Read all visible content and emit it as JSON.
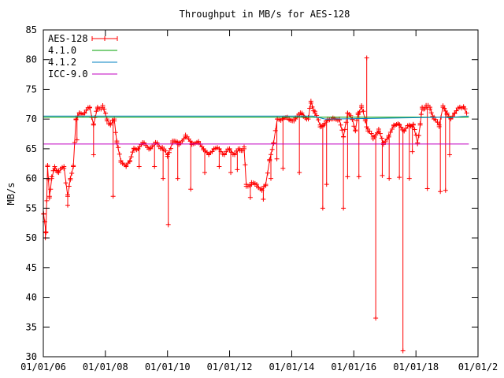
{
  "chart_data": {
    "type": "line",
    "title": "Throughput in MB/s for AES-128",
    "xlabel": "",
    "ylabel": "MB/s",
    "xlim": [
      "2006-01-01",
      "2020-01-01"
    ],
    "ylim": [
      30,
      85
    ],
    "x_ticks": [
      "01/01/06",
      "01/01/08",
      "01/01/10",
      "01/01/12",
      "01/01/14",
      "01/01/16",
      "01/01/18",
      "01/01/2"
    ],
    "y_ticks": [
      30,
      35,
      40,
      45,
      50,
      55,
      60,
      65,
      70,
      75,
      80,
      85
    ],
    "grid": false,
    "legend_position": "top-left",
    "series": [
      {
        "name": "AES-128",
        "color": "#ff0000",
        "marker": "plus",
        "points": [
          [
            "2006-01-05",
            54
          ],
          [
            "2006-02-01",
            51
          ],
          [
            "2006-02-20",
            62
          ],
          [
            "2006-03-15",
            57
          ],
          [
            "2006-04-10",
            60
          ],
          [
            "2006-05-15",
            62
          ],
          [
            "2006-07-01",
            61
          ],
          [
            "2006-09-01",
            62
          ],
          [
            "2006-10-15",
            57
          ],
          [
            "2006-11-15",
            60
          ],
          [
            "2006-12-20",
            62
          ],
          [
            "2007-01-20",
            70
          ],
          [
            "2007-03-01",
            71
          ],
          [
            "2007-05-01",
            71
          ],
          [
            "2007-07-01",
            72
          ],
          [
            "2007-08-15",
            69
          ],
          [
            "2007-10-01",
            72
          ],
          [
            "2007-12-01",
            72
          ],
          [
            "2008-01-20",
            70
          ],
          [
            "2008-03-01",
            69
          ],
          [
            "2008-04-15",
            70
          ],
          [
            "2008-05-15",
            66
          ],
          [
            "2008-07-01",
            63
          ],
          [
            "2008-09-01",
            62
          ],
          [
            "2008-10-15",
            63
          ],
          [
            "2008-12-01",
            65
          ],
          [
            "2009-01-20",
            65
          ],
          [
            "2009-04-01",
            66
          ],
          [
            "2009-06-15",
            65
          ],
          [
            "2009-09-01",
            66
          ],
          [
            "2009-11-01",
            65
          ],
          [
            "2010-01-01",
            64
          ],
          [
            "2010-03-01",
            66
          ],
          [
            "2010-05-15",
            66
          ],
          [
            "2010-08-01",
            67
          ],
          [
            "2010-10-15",
            66
          ],
          [
            "2011-01-01",
            66
          ],
          [
            "2011-03-01",
            65
          ],
          [
            "2011-05-01",
            64
          ],
          [
            "2011-07-01",
            65
          ],
          [
            "2011-09-01",
            65
          ],
          [
            "2011-11-01",
            64
          ],
          [
            "2012-01-01",
            65
          ],
          [
            "2012-03-01",
            64
          ],
          [
            "2012-05-01",
            65
          ],
          [
            "2012-06-20",
            65
          ],
          [
            "2012-07-15",
            59
          ],
          [
            "2012-09-15",
            59
          ],
          [
            "2012-11-15",
            59
          ],
          [
            "2013-01-15",
            58
          ],
          [
            "2013-03-01",
            59
          ],
          [
            "2013-04-15",
            63
          ],
          [
            "2013-06-01",
            66
          ],
          [
            "2013-07-15",
            70
          ],
          [
            "2013-09-15",
            70
          ],
          [
            "2013-12-01",
            70
          ],
          [
            "2014-02-15",
            70
          ],
          [
            "2014-05-01",
            71
          ],
          [
            "2014-07-15",
            70
          ],
          [
            "2014-08-15",
            73
          ],
          [
            "2014-10-01",
            71
          ],
          [
            "2014-12-01",
            69
          ],
          [
            "2015-01-20",
            69
          ],
          [
            "2015-03-01",
            70
          ],
          [
            "2015-05-01",
            70
          ],
          [
            "2015-07-15",
            70
          ],
          [
            "2015-09-01",
            67
          ],
          [
            "2015-10-20",
            71
          ],
          [
            "2015-12-15",
            70
          ],
          [
            "2016-01-20",
            68
          ],
          [
            "2016-02-20",
            71
          ],
          [
            "2016-04-01",
            72
          ],
          [
            "2016-05-15",
            70
          ],
          [
            "2016-06-15",
            68
          ],
          [
            "2016-08-15",
            67
          ],
          [
            "2016-10-20",
            68
          ],
          [
            "2016-12-15",
            66
          ],
          [
            "2017-02-15",
            67
          ],
          [
            "2017-04-15",
            69
          ],
          [
            "2017-06-20",
            69
          ],
          [
            "2017-08-15",
            68
          ],
          [
            "2017-10-15",
            69
          ],
          [
            "2017-12-01",
            69
          ],
          [
            "2018-01-20",
            66
          ],
          [
            "2018-02-20",
            69
          ],
          [
            "2018-03-15",
            72
          ],
          [
            "2018-05-01",
            72
          ],
          [
            "2018-06-15",
            72
          ],
          [
            "2018-08-01",
            70
          ],
          [
            "2018-10-01",
            69
          ],
          [
            "2018-11-15",
            72
          ],
          [
            "2019-01-01",
            71
          ],
          [
            "2019-02-15",
            70
          ],
          [
            "2019-04-01",
            71
          ],
          [
            "2019-06-01",
            72
          ],
          [
            "2019-07-15",
            72
          ],
          [
            "2019-08-20",
            71
          ]
        ],
        "spikes": [
          [
            "2006-01-25",
            50
          ],
          [
            "2006-10-15",
            55.5
          ],
          [
            "2007-02-01",
            66.5
          ],
          [
            "2007-08-15",
            64
          ],
          [
            "2008-04-01",
            57
          ],
          [
            "2009-02-01",
            62
          ],
          [
            "2009-08-01",
            62
          ],
          [
            "2009-11-10",
            60
          ],
          [
            "2010-01-10",
            52.2
          ],
          [
            "2010-05-01",
            60
          ],
          [
            "2010-10-01",
            58.2
          ],
          [
            "2011-03-15",
            61
          ],
          [
            "2011-09-01",
            62
          ],
          [
            "2012-01-15",
            61
          ],
          [
            "2012-04-01",
            61.5
          ],
          [
            "2012-09-01",
            56.8
          ],
          [
            "2013-02-01",
            56.5
          ],
          [
            "2013-05-01",
            60
          ],
          [
            "2013-07-10",
            63.3
          ],
          [
            "2013-09-20",
            61.7
          ],
          [
            "2014-04-01",
            61
          ],
          [
            "2015-01-01",
            55
          ],
          [
            "2015-02-15",
            59
          ],
          [
            "2015-09-01",
            55
          ],
          [
            "2015-10-20",
            60.3
          ],
          [
            "2016-03-01",
            60.3
          ],
          [
            "2016-06-01",
            80.3
          ],
          [
            "2016-09-15",
            36.5
          ],
          [
            "2016-12-01",
            60.5
          ],
          [
            "2017-02-20",
            60
          ],
          [
            "2017-06-20",
            60.2
          ],
          [
            "2017-08-01",
            31
          ],
          [
            "2017-10-15",
            60
          ],
          [
            "2017-11-20",
            64.5
          ],
          [
            "2018-05-15",
            58.3
          ],
          [
            "2018-10-15",
            57.8
          ],
          [
            "2018-12-15",
            58
          ],
          [
            "2019-02-01",
            64
          ]
        ]
      },
      {
        "name": "4.1.0",
        "color": "#00a000",
        "points": [
          [
            "2006-01-01",
            70.3
          ],
          [
            "2019-09-15",
            70.3
          ]
        ]
      },
      {
        "name": "4.1.2",
        "color": "#0080c0",
        "points": [
          [
            "2006-01-01",
            70.5
          ],
          [
            "2014-09-01",
            70.5
          ],
          [
            "2015-02-01",
            70.0
          ],
          [
            "2018-12-01",
            70.3
          ],
          [
            "2019-02-15",
            70.2
          ],
          [
            "2019-03-15",
            70.3
          ],
          [
            "2019-09-15",
            70.5
          ]
        ]
      },
      {
        "name": "ICC-9.0",
        "color": "#c000c0",
        "points": [
          [
            "2006-01-01",
            65.8
          ],
          [
            "2019-09-15",
            65.8
          ]
        ]
      }
    ]
  }
}
